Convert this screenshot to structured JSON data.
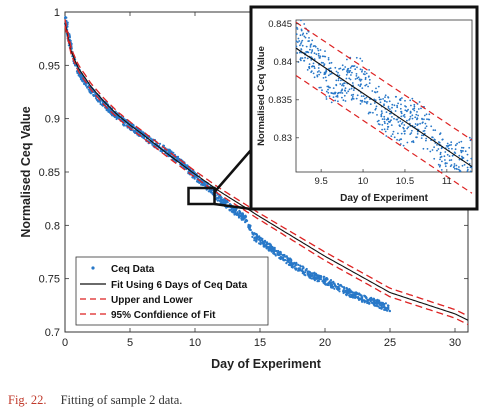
{
  "chart_data": {
    "type": "scatter",
    "xlabel": "Day of Experiment",
    "ylabel": "Normalised Ceq Value",
    "xlim": [
      0,
      31
    ],
    "ylim": [
      0.7,
      1.0
    ],
    "xticks": [
      "0",
      "5",
      "10",
      "15",
      "20",
      "25",
      "30"
    ],
    "yticks": [
      "0.7",
      "0.75",
      "0.8",
      "0.85",
      "0.9",
      "0.95",
      "1"
    ],
    "grid": false,
    "legend_position": "bottom-left",
    "series": [
      {
        "name": "Ceq Data",
        "kind": "points",
        "color": "#2878c8",
        "x": [
          0.05,
          0.3,
          0.6,
          1,
          1.5,
          2,
          2.5,
          3,
          3.5,
          4,
          5,
          6,
          7,
          8,
          9,
          10,
          11,
          11.5,
          12,
          13,
          14,
          14.5,
          15,
          16,
          17,
          18,
          19,
          20,
          21,
          22,
          23,
          24,
          25
        ],
        "y": [
          0.995,
          0.975,
          0.958,
          0.945,
          0.935,
          0.927,
          0.92,
          0.914,
          0.908,
          0.902,
          0.893,
          0.884,
          0.876,
          0.868,
          0.858,
          0.846,
          0.836,
          0.829,
          0.824,
          0.814,
          0.805,
          0.79,
          0.786,
          0.777,
          0.768,
          0.76,
          0.753,
          0.748,
          0.742,
          0.736,
          0.731,
          0.727,
          0.722
        ]
      },
      {
        "name": "Fit Using 6 Days of Ceq Data",
        "kind": "line",
        "color": "#111111",
        "x": [
          0,
          0.5,
          1,
          2,
          3,
          4,
          5,
          6,
          8,
          10,
          12,
          15,
          20,
          25,
          30,
          31
        ],
        "y": [
          0.99,
          0.962,
          0.948,
          0.93,
          0.916,
          0.904,
          0.894,
          0.885,
          0.866,
          0.848,
          0.831,
          0.808,
          0.771,
          0.737,
          0.717,
          0.711
        ]
      },
      {
        "name": "Upper and Lower",
        "kind": "dashed",
        "color": "#dd2222",
        "x": [
          0,
          0.5,
          1,
          2,
          3,
          4,
          5,
          6,
          8,
          10,
          12,
          15,
          20,
          25,
          30,
          31
        ],
        "y": [
          0.993,
          0.965,
          0.951,
          0.933,
          0.919,
          0.907,
          0.897,
          0.888,
          0.869,
          0.851,
          0.834,
          0.811,
          0.775,
          0.741,
          0.721,
          0.715
        ]
      },
      {
        "name": "95% Confdience of Fit",
        "kind": "dashed",
        "color": "#dd2222",
        "x": [
          0,
          0.5,
          1,
          2,
          3,
          4,
          5,
          6,
          8,
          10,
          12,
          15,
          20,
          25,
          30,
          31
        ],
        "y": [
          0.987,
          0.959,
          0.945,
          0.927,
          0.913,
          0.901,
          0.891,
          0.882,
          0.863,
          0.845,
          0.828,
          0.805,
          0.767,
          0.733,
          0.713,
          0.707
        ]
      }
    ],
    "zoom_box": {
      "x": [
        9.5,
        11.5
      ],
      "y": [
        0.82,
        0.835
      ]
    },
    "inset": {
      "xlabel": "Day of Experiment",
      "ylabel": "Normalised Ceq Value",
      "xlim": [
        9.2,
        11.3
      ],
      "ylim": [
        0.8255,
        0.8455
      ],
      "xticks": [
        "9.5",
        "10",
        "10.5",
        "11"
      ],
      "yticks": [
        "0.83",
        "0.835",
        "0.84",
        "0.845"
      ],
      "fit": {
        "x": [
          9.2,
          11.3
        ],
        "y": [
          0.8418,
          0.8262
        ]
      },
      "upper": {
        "x": [
          9.2,
          11.3
        ],
        "y": [
          0.8452,
          0.8297
        ]
      },
      "lower": {
        "x": [
          9.2,
          11.3
        ],
        "y": [
          0.8382,
          0.8227
        ]
      },
      "points_spread": 0.0032
    }
  },
  "caption": {
    "label": "Fig. 22.",
    "text": "Fitting of sample 2 data."
  }
}
